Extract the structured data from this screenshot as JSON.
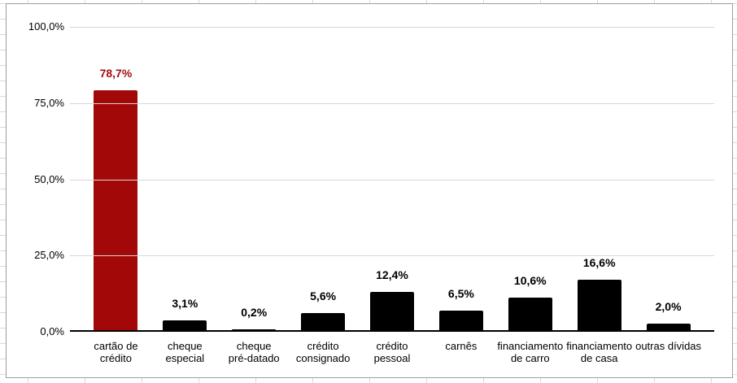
{
  "chart_data": {
    "type": "bar",
    "title": "",
    "xlabel": "",
    "ylabel": "",
    "ylim": [
      0,
      100
    ],
    "grid": true,
    "legend": false,
    "number_format": "pt-BR percent, one decimal",
    "categories": [
      "cartão de crédito",
      "cheque especial",
      "cheque pré-datado",
      "crédito consignado",
      "crédito pessoal",
      "carnês",
      "financiamento de carro",
      "financiamento de casa",
      "outras dívidas"
    ],
    "category_lines": [
      [
        "cartão de",
        "crédito"
      ],
      [
        "cheque",
        "especial"
      ],
      [
        "cheque",
        "pré-datado"
      ],
      [
        "crédito",
        "consignado"
      ],
      [
        "crédito",
        "pessoal"
      ],
      [
        "carnês"
      ],
      [
        "financiamento",
        "de carro"
      ],
      [
        "financiamento",
        "de casa"
      ],
      [
        "outras dívidas"
      ]
    ],
    "values": [
      78.7,
      3.1,
      0.2,
      5.6,
      12.4,
      6.5,
      10.6,
      16.6,
      2.0
    ],
    "value_labels": [
      "78,7%",
      "3,1%",
      "0,2%",
      "5,6%",
      "12,4%",
      "6,5%",
      "10,6%",
      "16,6%",
      "2,0%"
    ],
    "y_ticks": [
      {
        "value": 100,
        "label": "100,0%"
      },
      {
        "value": 75,
        "label": "75,0%"
      },
      {
        "value": 50,
        "label": "50,0%"
      },
      {
        "value": 25,
        "label": "25,0%"
      },
      {
        "value": 0,
        "label": "0,0%"
      }
    ],
    "highlight_index": 0,
    "colors": {
      "bar_default": "#000000",
      "bar_highlight": "#a30808",
      "value_label_default": "#000000",
      "value_label_highlight": "#a31010",
      "gridline": "#d6d6d6",
      "axis_line": "#000000",
      "chart_border": "#9e9e9e",
      "spreadsheet_gridline": "#d9d9d9",
      "background": "#ffffff"
    }
  }
}
